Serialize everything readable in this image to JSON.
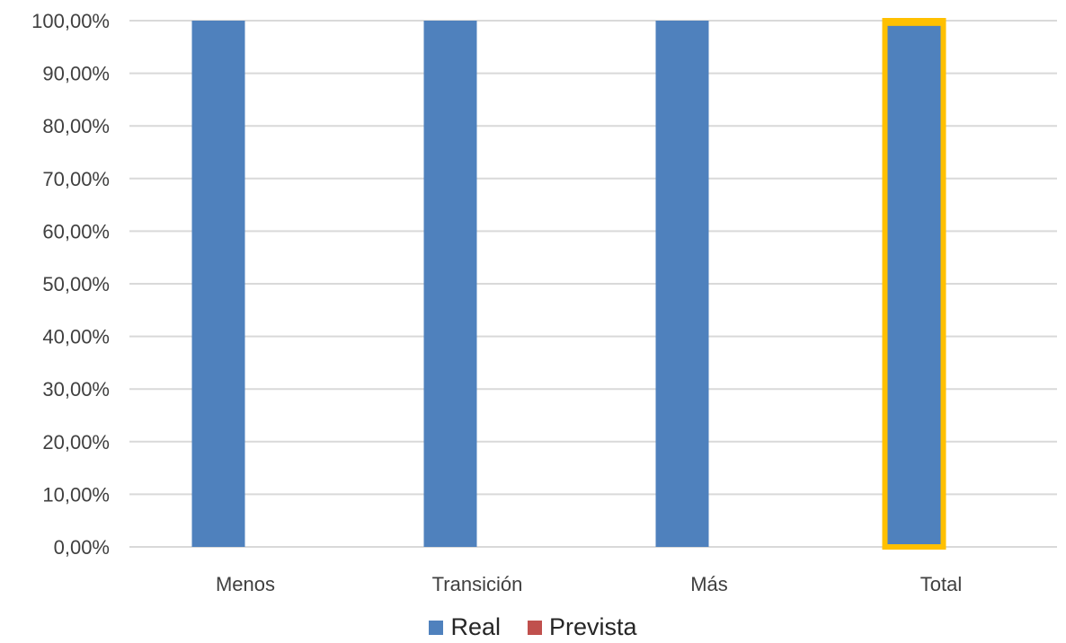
{
  "chart_data": {
    "type": "bar",
    "categories": [
      "Menos",
      "Transición",
      "Más",
      "Total"
    ],
    "series": [
      {
        "name": "Real",
        "values": [
          100,
          100,
          100,
          99
        ],
        "color": "#4F81BD"
      },
      {
        "name": "Prevista",
        "values": [
          null,
          null,
          null,
          null
        ],
        "color": "#C0504D"
      }
    ],
    "y_ticks": [
      "0,00%",
      "10,00%",
      "20,00%",
      "30,00%",
      "40,00%",
      "50,00%",
      "60,00%",
      "70,00%",
      "80,00%",
      "90,00%",
      "100,00%"
    ],
    "ylim": [
      0,
      100
    ],
    "grid": true,
    "highlight": {
      "category": "Total",
      "color": "#FFC000"
    },
    "legend_position": "bottom",
    "gridline_color": "#D9D9D9"
  }
}
